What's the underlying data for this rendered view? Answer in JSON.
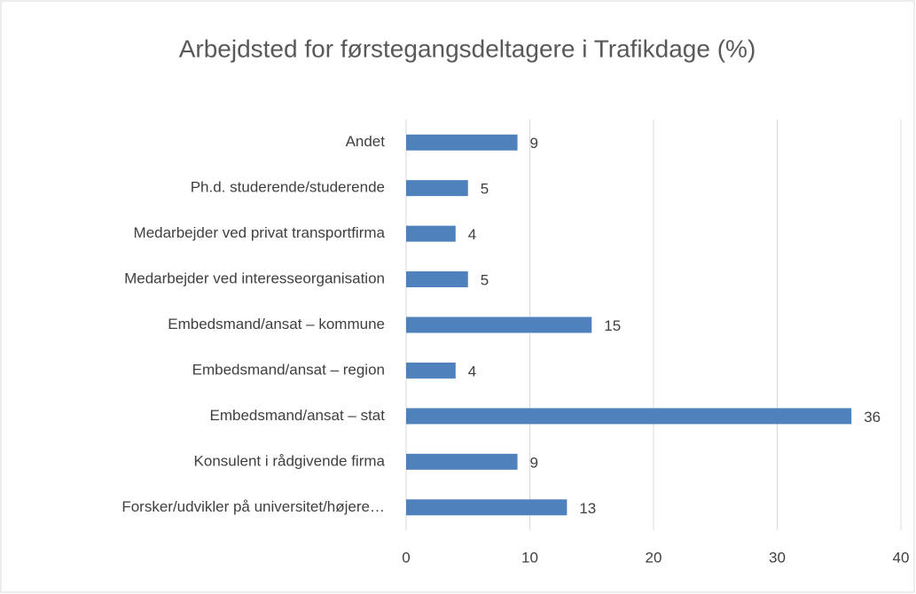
{
  "chart_data": {
    "type": "bar",
    "orientation": "horizontal",
    "title": "Arbejdsted for førstegangsdeltagere i Trafikdage  (%)",
    "categories": [
      "Andet",
      "Ph.d. studerende/studerende",
      "Medarbejder ved privat transportfirma",
      "Medarbejder ved interesseorganisation",
      "Embedsmand/ansat – kommune",
      "Embedsmand/ansat – region",
      "Embedsmand/ansat – stat",
      "Konsulent i rådgivende firma",
      "Forsker/udvikler på universitet/højere…"
    ],
    "values": [
      9,
      5,
      4,
      5,
      15,
      4,
      36,
      9,
      13
    ],
    "color": "#4f81bd",
    "xlim": [
      0,
      40
    ],
    "xticks": [
      0,
      10,
      20,
      30,
      40
    ],
    "grid": true
  }
}
